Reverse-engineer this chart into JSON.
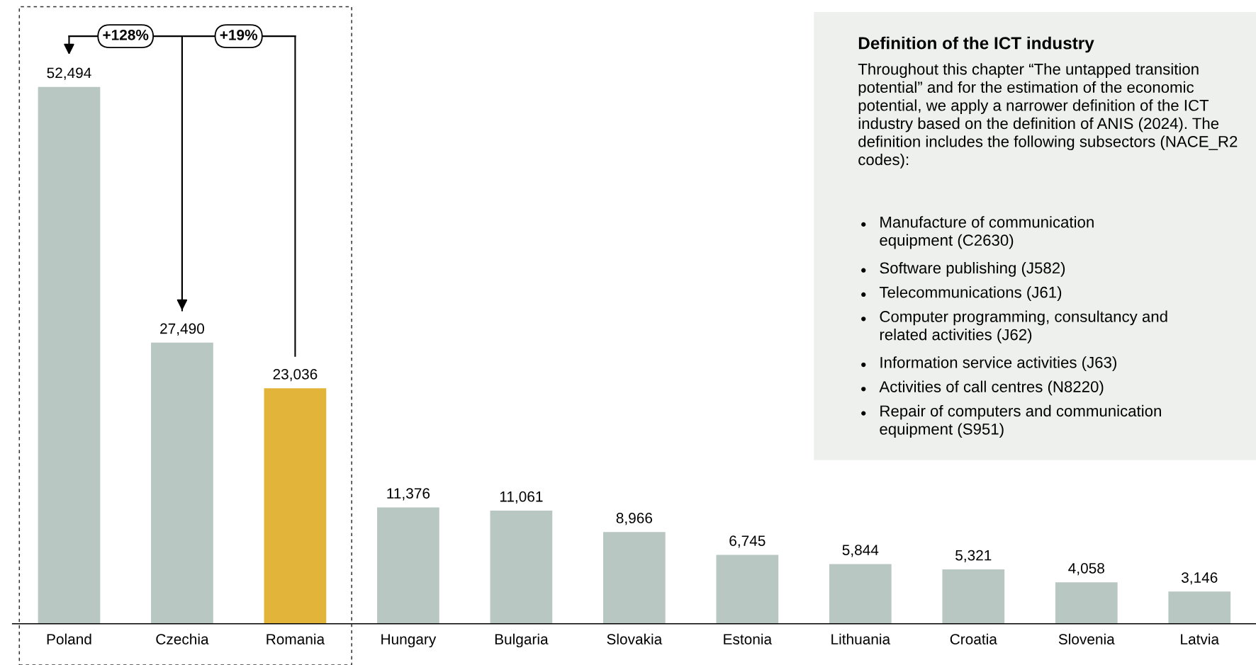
{
  "chart_data": {
    "type": "bar",
    "categories": [
      "Poland",
      "Czechia",
      "Romania",
      "Hungary",
      "Bulgaria",
      "Slovakia",
      "Estonia",
      "Lithuania",
      "Croatia",
      "Slovenia",
      "Latvia"
    ],
    "values": [
      52494,
      27490,
      23036,
      11376,
      11061,
      8966,
      6745,
      5844,
      5321,
      4058,
      3146
    ],
    "colors": [
      "#b8c7c1",
      "#b8c7c1",
      "#e3b43a",
      "#b8c7c1",
      "#b8c7c1",
      "#b8c7c1",
      "#b8c7c1",
      "#b8c7c1",
      "#b8c7c1",
      "#b8c7c1",
      "#b8c7c1"
    ],
    "data_labels": true,
    "value_labels": [
      "52,494",
      "27,490",
      "23,036",
      "11,376",
      "11,061",
      "8,966",
      "6,745",
      "5,844",
      "5,321",
      "4,058",
      "3,146"
    ],
    "annotations": [
      "+128%",
      "+19%",
      "Definition of the ICT industry",
      "Throughout this chapter “The untapped transition potential” and for the estimation of the economic potential, we apply a narrower definition of the ICT industry based on the definition of ANIS (2024). The definition includes the following subsectors (NACE_R2 codes):",
      "Manufacture of communication\nequipment (C2630)",
      "Software publishing (J582)",
      "Telecommunications (J61)",
      "Computer programming, consultancy and\nrelated activities (J62)",
      "Information service activities (J63)",
      "Activities of call centres (N8220)",
      "Repair of computers and communication\nequipment (S951)"
    ]
  }
}
